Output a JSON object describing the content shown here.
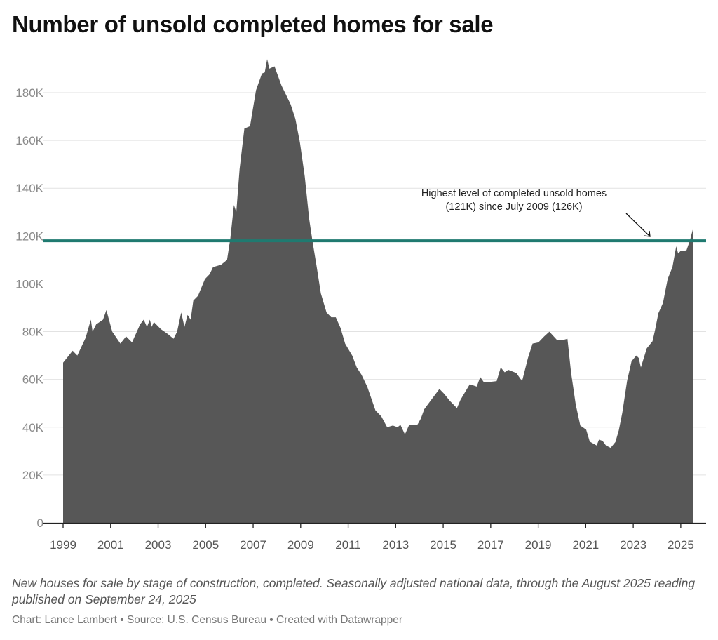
{
  "chart_data": {
    "type": "area",
    "title": "Number of unsold completed homes for sale",
    "xlabel": "",
    "ylabel": "",
    "ylim": [
      0,
      180000
    ],
    "xlim": [
      1999,
      2025.7
    ],
    "yticks": [
      0,
      20000,
      40000,
      60000,
      80000,
      100000,
      120000,
      140000,
      160000,
      180000
    ],
    "ytick_labels": [
      "0",
      "20K",
      "40K",
      "60K",
      "80K",
      "100K",
      "120K",
      "140K",
      "160K",
      "180K"
    ],
    "xticks": [
      1999,
      2001,
      2003,
      2005,
      2007,
      2009,
      2011,
      2013,
      2015,
      2017,
      2019,
      2021,
      2023,
      2025
    ],
    "xtick_labels": [
      "1999",
      "2001",
      "2003",
      "2005",
      "2007",
      "2009",
      "2011",
      "2013",
      "2015",
      "2017",
      "2019",
      "2021",
      "2023",
      "2025"
    ],
    "grid": true,
    "colors": {
      "area": "#575757",
      "reference_line": "#1f7a70",
      "grid": "#e2e2e2"
    },
    "reference_line": {
      "value": 118000
    },
    "annotation": {
      "lines": [
        "Highest level of completed unsold homes",
        "(121K) since July 2009 (126K)"
      ],
      "arrow": true
    },
    "x": [
      1999.0,
      1999.4,
      1999.6,
      1999.95,
      2000.05,
      2000.17,
      2000.24,
      2000.39,
      2000.68,
      2000.82,
      2001.07,
      2001.41,
      2001.65,
      2001.9,
      2002.24,
      2002.39,
      2002.53,
      2002.65,
      2002.73,
      2002.82,
      2003.12,
      2003.41,
      2003.65,
      2003.8,
      2003.97,
      2004.11,
      2004.24,
      2004.37,
      2004.48,
      2004.68,
      2004.97,
      2005.17,
      2005.31,
      2005.65,
      2005.9,
      2006.04,
      2006.19,
      2006.29,
      2006.43,
      2006.63,
      2006.87,
      2007.12,
      2007.37,
      2007.49,
      2007.59,
      2007.68,
      2007.9,
      2008.19,
      2008.39,
      2008.58,
      2008.78,
      2008.97,
      2009.17,
      2009.36,
      2009.51,
      2009.66,
      2009.85,
      2010.09,
      2010.29,
      2010.48,
      2010.68,
      2010.87,
      2011.17,
      2011.36,
      2011.56,
      2011.8,
      2012.15,
      2012.39,
      2012.64,
      2012.88,
      2013.08,
      2013.2,
      2013.39,
      2013.57,
      2013.91,
      2014.06,
      2014.2,
      2014.5,
      2014.84,
      2015.04,
      2015.28,
      2015.58,
      2015.73,
      2016.12,
      2016.41,
      2016.56,
      2016.7,
      2017.0,
      2017.25,
      2017.42,
      2017.59,
      2017.74,
      2018.08,
      2018.32,
      2018.57,
      2018.76,
      2019.01,
      2019.25,
      2019.47,
      2019.79,
      2020.04,
      2020.23,
      2020.38,
      2020.58,
      2020.77,
      2021.02,
      2021.17,
      2021.46,
      2021.56,
      2021.71,
      2021.85,
      2022.05,
      2022.25,
      2022.39,
      2022.54,
      2022.74,
      2022.93,
      2023.13,
      2023.23,
      2023.32,
      2023.57,
      2023.81,
      2023.91,
      2024.06,
      2024.25,
      2024.45,
      2024.65,
      2024.81,
      2024.89,
      2024.99,
      2025.24,
      2025.38,
      2025.53
    ],
    "values": [
      67000,
      72000,
      70000,
      77500,
      81000,
      85000,
      80000,
      83000,
      85000,
      89000,
      80000,
      75000,
      78000,
      75500,
      83000,
      85000,
      82000,
      85000,
      82000,
      84000,
      81000,
      79000,
      77000,
      80000,
      88000,
      82000,
      87000,
      85000,
      93000,
      95000,
      102000,
      104000,
      107000,
      108000,
      110000,
      119000,
      133000,
      130000,
      148000,
      165000,
      166000,
      181000,
      188000,
      188500,
      194000,
      190000,
      191000,
      183000,
      179000,
      175000,
      169000,
      159000,
      145000,
      127000,
      117000,
      108000,
      96000,
      88000,
      86000,
      86000,
      81500,
      75000,
      70000,
      65000,
      62000,
      57000,
      47000,
      44600,
      40000,
      40700,
      40000,
      41000,
      37000,
      41000,
      41000,
      43600,
      47500,
      51500,
      56000,
      54000,
      51000,
      48000,
      51500,
      58000,
      57000,
      61000,
      59000,
      59000,
      59300,
      65000,
      63000,
      64000,
      62700,
      59300,
      69000,
      75000,
      75500,
      78000,
      80000,
      76500,
      76500,
      77000,
      63000,
      49500,
      40700,
      39000,
      34000,
      32400,
      34800,
      34300,
      32400,
      31400,
      33800,
      38700,
      46000,
      59300,
      67600,
      70000,
      69000,
      65000,
      73000,
      76000,
      80400,
      87700,
      92000,
      102000,
      107000,
      115700,
      112700,
      113700,
      114000,
      118000,
      123500
    ]
  },
  "caption": "New houses for sale by stage of construction, completed. Seasonally adjusted national data, through the August 2025 reading published on September 24, 2025",
  "credits": "Chart: Lance Lambert • Source: U.S. Census Bureau • Created with Datawrapper"
}
